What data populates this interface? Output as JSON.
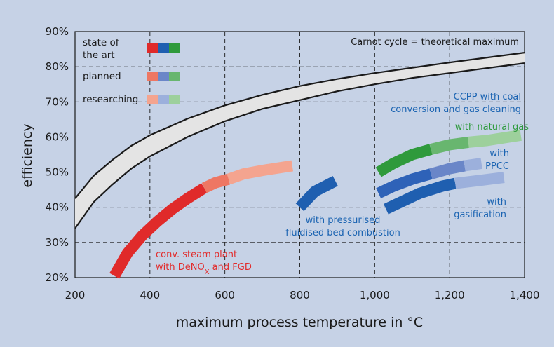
{
  "chart_data": {
    "type": "line",
    "xlabel": "maximum process temperature in °C",
    "ylabel": "efficiency",
    "xlim": [
      200,
      1400
    ],
    "ylim": [
      20,
      90
    ],
    "x_ticks": [
      {
        "value": 200,
        "label": "200"
      },
      {
        "value": 400,
        "label": "400"
      },
      {
        "value": 600,
        "label": "600"
      },
      {
        "value": 800,
        "label": "800"
      },
      {
        "value": 1000,
        "label": "1,000"
      },
      {
        "value": 1200,
        "label": "1,200"
      },
      {
        "value": 1400,
        "label": "1,400"
      }
    ],
    "y_ticks": [
      {
        "value": 20,
        "label": "20%"
      },
      {
        "value": 30,
        "label": "30%"
      },
      {
        "value": 40,
        "label": "40%"
      },
      {
        "value": 50,
        "label": "50%"
      },
      {
        "value": 60,
        "label": "60%"
      },
      {
        "value": 70,
        "label": "70%"
      },
      {
        "value": 80,
        "label": "80%"
      },
      {
        "value": 90,
        "label": "90%"
      }
    ],
    "grid": "dashed",
    "carnot_band": {
      "label": "Carnot cycle = theoretical maximum",
      "upper": [
        [
          200,
          42.5
        ],
        [
          250,
          49
        ],
        [
          300,
          53.5
        ],
        [
          350,
          57.5
        ],
        [
          400,
          60.5
        ],
        [
          500,
          65.2
        ],
        [
          600,
          69
        ],
        [
          700,
          72
        ],
        [
          800,
          74.5
        ],
        [
          900,
          76.5
        ],
        [
          1000,
          78.2
        ],
        [
          1100,
          79.7
        ],
        [
          1200,
          81.2
        ],
        [
          1300,
          82.6
        ],
        [
          1400,
          84
        ]
      ],
      "lower": [
        [
          200,
          34
        ],
        [
          250,
          41.5
        ],
        [
          300,
          46.5
        ],
        [
          350,
          51
        ],
        [
          400,
          54.5
        ],
        [
          500,
          60
        ],
        [
          600,
          64.5
        ],
        [
          700,
          68
        ],
        [
          800,
          70.5
        ],
        [
          900,
          73
        ],
        [
          1000,
          75
        ],
        [
          1100,
          76.8
        ],
        [
          1200,
          78.2
        ],
        [
          1300,
          79.6
        ],
        [
          1400,
          81
        ]
      ]
    },
    "technologies": [
      {
        "label_lines": [
          "conv. steam plant",
          "with DeNOx and FGD"
        ],
        "label_color": "#e22b2b",
        "stages": [
          {
            "status": "state of the art",
            "color": "#e02a2a",
            "points": [
              [
                305,
                20.5
              ],
              [
                340,
                27
              ],
              [
                380,
                32
              ],
              [
                420,
                36
              ],
              [
                460,
                39.5
              ],
              [
                500,
                42.5
              ],
              [
                545,
                45.5
              ]
            ]
          },
          {
            "status": "planned",
            "color": "#ee7763",
            "points": [
              [
                545,
                45.5
              ],
              [
                575,
                47
              ],
              [
                610,
                48
              ]
            ]
          },
          {
            "status": "researching",
            "color": "#f4a48f",
            "points": [
              [
                610,
                48
              ],
              [
                650,
                49.5
              ],
              [
                700,
                50.5
              ],
              [
                780,
                51.8
              ]
            ]
          }
        ]
      },
      {
        "label_lines": [
          "with pressurised",
          "fluidised bed combustion"
        ],
        "label_color": "#1b64b2",
        "stages": [
          {
            "status": "state of the art",
            "color": "#1f5fb0",
            "points": [
              [
                800,
                40
              ],
              [
                840,
                44.5
              ],
              [
                895,
                47.5
              ]
            ]
          }
        ]
      },
      {
        "label_lines": [
          "CCPP with coal",
          "conversion and gas cleaning"
        ],
        "label_color": "#1b64b2",
        "stages": []
      },
      {
        "label_lines": [
          "with natural gas"
        ],
        "label_color": "#2d9a3c",
        "stages": [
          {
            "status": "state of the art",
            "color": "#2f9a3c",
            "points": [
              [
                1010,
                50
              ],
              [
                1050,
                52.5
              ],
              [
                1100,
                55
              ],
              [
                1150,
                56.5
              ]
            ]
          },
          {
            "status": "planned",
            "color": "#68b66f",
            "points": [
              [
                1150,
                56.5
              ],
              [
                1200,
                57.8
              ],
              [
                1250,
                58.5
              ]
            ]
          },
          {
            "status": "researching",
            "color": "#9dd09c",
            "points": [
              [
                1250,
                58.5
              ],
              [
                1300,
                59
              ],
              [
                1390,
                60.5
              ]
            ]
          }
        ]
      },
      {
        "label_lines": [
          "with",
          "PPCC"
        ],
        "label_color": "#1b64b2",
        "stages": [
          {
            "status": "state of the art",
            "color": "#2e62b8",
            "points": [
              [
                1010,
                44
              ],
              [
                1050,
                46
              ],
              [
                1100,
                48
              ],
              [
                1150,
                49.5
              ]
            ]
          },
          {
            "status": "planned",
            "color": "#6a86c8",
            "points": [
              [
                1150,
                49.5
              ],
              [
                1200,
                51
              ],
              [
                1240,
                51.8
              ]
            ]
          },
          {
            "status": "researching",
            "color": "#9cb0dc",
            "points": [
              [
                1240,
                51.8
              ],
              [
                1285,
                52.5
              ]
            ]
          }
        ]
      },
      {
        "label_lines": [
          "with",
          "gasification"
        ],
        "label_color": "#1b64b2",
        "stages": [
          {
            "status": "state of the art",
            "color": "#1f5fb0",
            "points": [
              [
                1030,
                39.5
              ],
              [
                1070,
                41.5
              ],
              [
                1120,
                44
              ],
              [
                1180,
                46
              ],
              [
                1215,
                46.8
              ]
            ]
          },
          {
            "status": "researching",
            "color": "#9cb0dc",
            "points": [
              [
                1215,
                46.8
              ],
              [
                1270,
                47.5
              ],
              [
                1345,
                48.5
              ]
            ]
          }
        ]
      }
    ],
    "legend": {
      "position": "top-left",
      "items": [
        {
          "label_lines": [
            "state of",
            "the art"
          ],
          "colors": [
            "#e02a2a",
            "#1f5fb0",
            "#2f9a3c"
          ]
        },
        {
          "label_lines": [
            "planned"
          ],
          "colors": [
            "#ee7763",
            "#6a86c8",
            "#68b66f"
          ]
        },
        {
          "label_lines": [
            "researching"
          ],
          "colors": [
            "#f4a48f",
            "#9cb0dc",
            "#9dd09c"
          ]
        }
      ]
    },
    "colors": {
      "background": "#c6d2e6",
      "plot_background": "#c6d2e6",
      "band_fill": "#e4e4e4",
      "curve": "#1a1a1a",
      "grid": "#1a1a1a"
    }
  }
}
